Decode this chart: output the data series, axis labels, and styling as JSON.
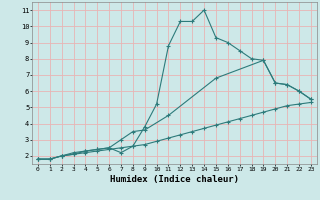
{
  "xlabel": "Humidex (Indice chaleur)",
  "bg_color": "#cde8e8",
  "grid_color": "#e8b4b4",
  "line_color": "#2d7b7b",
  "xlim": [
    -0.5,
    23.5
  ],
  "ylim": [
    1.5,
    11.5
  ],
  "xticks": [
    0,
    1,
    2,
    3,
    4,
    5,
    6,
    7,
    8,
    9,
    10,
    11,
    12,
    13,
    14,
    15,
    16,
    17,
    18,
    19,
    20,
    21,
    22,
    23
  ],
  "yticks": [
    2,
    3,
    4,
    5,
    6,
    7,
    8,
    9,
    10,
    11
  ],
  "line1_x": [
    0,
    1,
    2,
    3,
    4,
    5,
    6,
    7,
    8,
    9,
    10,
    11,
    12,
    13,
    14,
    15,
    16,
    17,
    18,
    19,
    20,
    21,
    22,
    23
  ],
  "line1_y": [
    1.8,
    1.8,
    2.0,
    2.2,
    2.3,
    2.4,
    2.5,
    2.2,
    2.6,
    3.8,
    5.2,
    8.8,
    10.3,
    10.3,
    11.0,
    9.3,
    9.0,
    8.5,
    8.0,
    7.9,
    6.5,
    6.4,
    6.0,
    5.5
  ],
  "line2_x": [
    0,
    1,
    2,
    3,
    4,
    5,
    6,
    7,
    8,
    9,
    11,
    15,
    19,
    20,
    21,
    22,
    23
  ],
  "line2_y": [
    1.8,
    1.8,
    2.0,
    2.1,
    2.3,
    2.4,
    2.5,
    3.0,
    3.5,
    3.6,
    4.5,
    6.8,
    7.9,
    6.5,
    6.4,
    6.0,
    5.5
  ],
  "line3_x": [
    0,
    1,
    2,
    3,
    4,
    5,
    6,
    7,
    8,
    9,
    10,
    11,
    12,
    13,
    14,
    15,
    16,
    17,
    18,
    19,
    20,
    21,
    22,
    23
  ],
  "line3_y": [
    1.8,
    1.8,
    2.0,
    2.1,
    2.2,
    2.3,
    2.4,
    2.5,
    2.6,
    2.7,
    2.9,
    3.1,
    3.3,
    3.5,
    3.7,
    3.9,
    4.1,
    4.3,
    4.5,
    4.7,
    4.9,
    5.1,
    5.2,
    5.3
  ]
}
